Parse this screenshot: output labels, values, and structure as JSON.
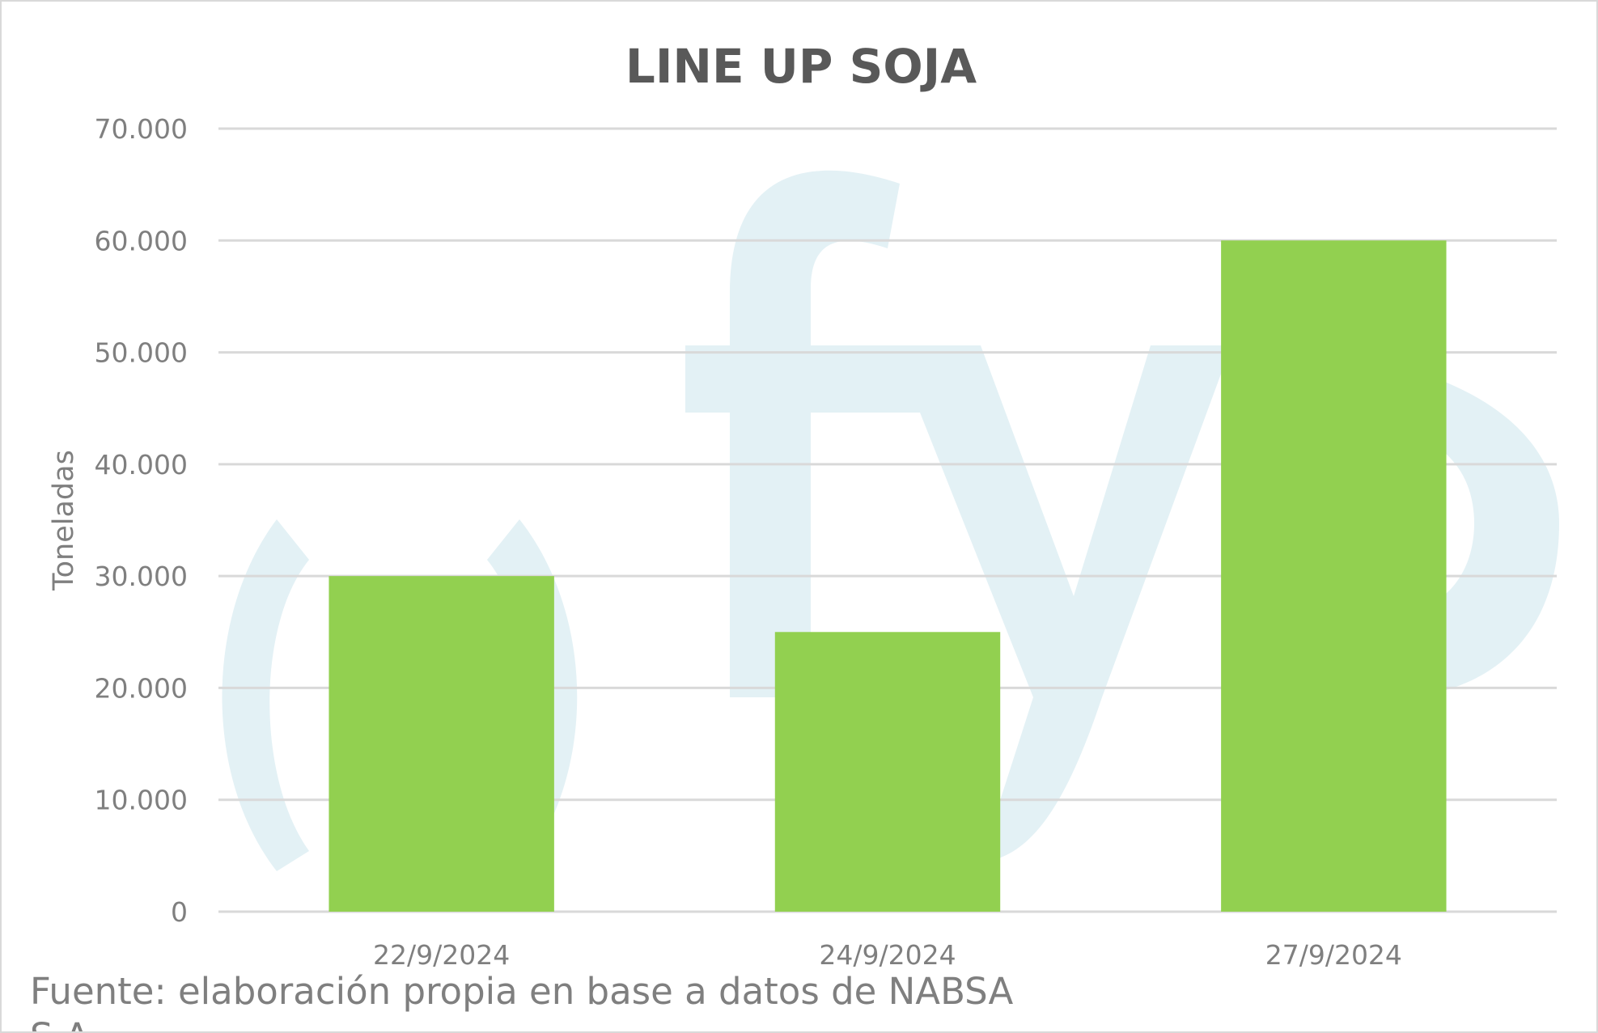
{
  "chart_data": {
    "type": "bar",
    "title": "LINE UP SOJA",
    "xlabel": "",
    "ylabel": "Toneladas",
    "categories": [
      "22/9/2024",
      "24/9/2024",
      "27/9/2024"
    ],
    "values": [
      30000,
      25000,
      60000
    ],
    "ylim": [
      0,
      70000
    ],
    "yticks": [
      0,
      10000,
      20000,
      30000,
      40000,
      50000,
      60000,
      70000
    ],
    "ytick_labels": [
      "0",
      "10.000",
      "20.000",
      "30.000",
      "40.000",
      "50.000",
      "60.000",
      "70.000"
    ],
    "bar_color": "#92d050",
    "grid": true,
    "legend": "none"
  },
  "watermark": {
    "text": "ofyp",
    "color": "#e3f1f5"
  },
  "footer": {
    "text": "Fuente: elaboración propia en base a datos de NABSA S.A."
  }
}
